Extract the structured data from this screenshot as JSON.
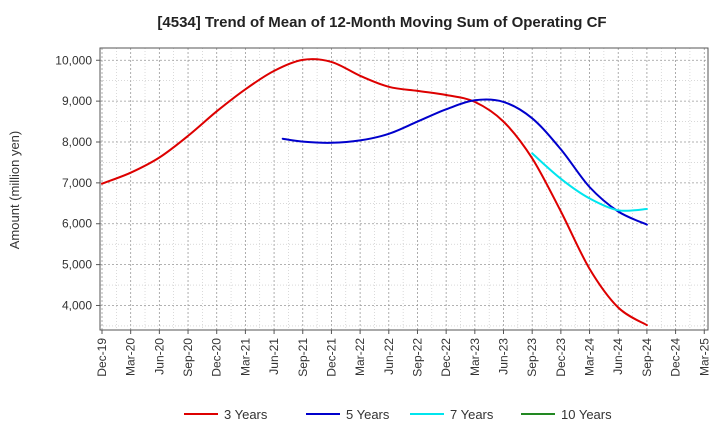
{
  "chart_data": {
    "type": "line",
    "title": "[4534]  Trend of Mean of 12-Month Moving Sum of Operating CF",
    "xlabel": "",
    "ylabel": "Amount (million yen)",
    "ylim": [
      3400,
      10300
    ],
    "y_ticks": [
      4000,
      5000,
      6000,
      7000,
      8000,
      9000,
      10000
    ],
    "y_tick_labels": [
      "4,000",
      "5,000",
      "6,000",
      "7,000",
      "8,000",
      "9,000",
      "10,000"
    ],
    "x_ticks": [
      "Dec-19",
      "Mar-20",
      "Jun-20",
      "Sep-20",
      "Dec-20",
      "Mar-21",
      "Jun-21",
      "Sep-21",
      "Dec-21",
      "Mar-22",
      "Jun-22",
      "Sep-22",
      "Dec-22",
      "Mar-23",
      "Jun-23",
      "Sep-23",
      "Dec-23",
      "Mar-24",
      "Jun-24",
      "Sep-24",
      "Dec-24",
      "Mar-25"
    ],
    "grid": true,
    "legend_position": "bottom",
    "series": [
      {
        "name": "3 Years",
        "color": "#dd0000",
        "points": [
          [
            0,
            6980
          ],
          [
            1,
            7250
          ],
          [
            2,
            7620
          ],
          [
            3,
            8150
          ],
          [
            4,
            8750
          ],
          [
            5,
            9290
          ],
          [
            6,
            9740
          ],
          [
            7,
            10010
          ],
          [
            8,
            9960
          ],
          [
            9,
            9620
          ],
          [
            10,
            9350
          ],
          [
            11,
            9250
          ],
          [
            12,
            9150
          ],
          [
            13,
            8980
          ],
          [
            14,
            8500
          ],
          [
            15,
            7600
          ],
          [
            16,
            6300
          ],
          [
            17,
            4900
          ],
          [
            18,
            3950
          ],
          [
            19,
            3520
          ]
        ]
      },
      {
        "name": "5 Years",
        "color": "#0000cc",
        "points": [
          [
            6.3,
            8080
          ],
          [
            7,
            8010
          ],
          [
            8,
            7980
          ],
          [
            9,
            8040
          ],
          [
            10,
            8200
          ],
          [
            11,
            8500
          ],
          [
            12,
            8800
          ],
          [
            13,
            9020
          ],
          [
            14,
            8980
          ],
          [
            15,
            8580
          ],
          [
            16,
            7820
          ],
          [
            17,
            6900
          ],
          [
            18,
            6300
          ],
          [
            19,
            5980
          ]
        ]
      },
      {
        "name": "7 Years",
        "color": "#00e5ee",
        "points": [
          [
            15,
            7720
          ],
          [
            16,
            7100
          ],
          [
            17,
            6620
          ],
          [
            18,
            6330
          ],
          [
            19,
            6360
          ]
        ]
      },
      {
        "name": "10 Years",
        "color": "#228822",
        "points": []
      }
    ]
  }
}
